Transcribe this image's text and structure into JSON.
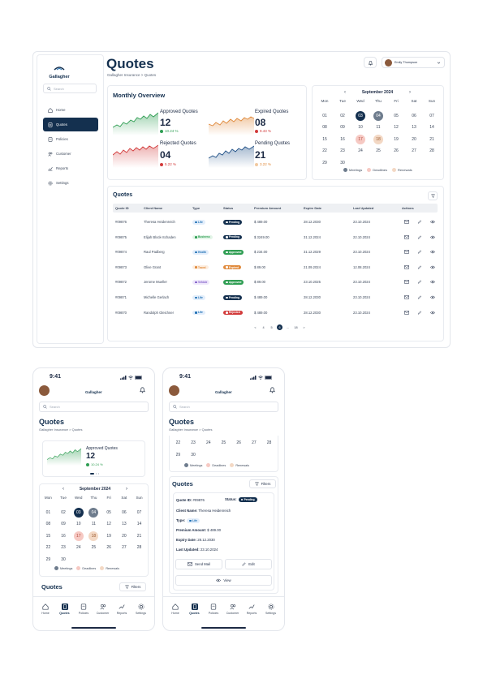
{
  "brand": {
    "name": "Gallagher"
  },
  "desktop": {
    "search_placeholder": "Search",
    "nav": [
      {
        "label": "Home",
        "icon": "home-icon"
      },
      {
        "label": "Quotes",
        "icon": "quotes-icon"
      },
      {
        "label": "Policies",
        "icon": "policies-icon"
      },
      {
        "label": "Customer",
        "icon": "customer-icon"
      },
      {
        "label": "Reports",
        "icon": "reports-icon"
      },
      {
        "label": "Settings",
        "icon": "settings-icon"
      }
    ],
    "page_title": "Quotes",
    "breadcrumb": "Gallagher Insurance > Quotes",
    "user_name": "Emily Thompson",
    "overview": {
      "title": "Monthly Overview",
      "items": [
        {
          "label": "Approved Quotes",
          "value": "12",
          "change": "10.24 %",
          "trend": "up",
          "color": "#2f9e53"
        },
        {
          "label": "Expired Quotes",
          "value": "08",
          "change": "9.43 %",
          "trend": "down",
          "color": "#e08a3c"
        },
        {
          "label": "Rejected Quotes",
          "value": "04",
          "change": "5.22 %",
          "trend": "down",
          "color": "#d23a3a"
        },
        {
          "label": "Pending Quotes",
          "value": "21",
          "change": "3.22 %",
          "trend": "up",
          "color": "#1e4f86"
        }
      ]
    },
    "calendar": {
      "month": "September 2024",
      "weekdays": [
        "Mon",
        "Tue",
        "Wed",
        "Thu",
        "Fri",
        "Sat",
        "Sun"
      ],
      "weeks": [
        [
          "01",
          "02",
          "03",
          "04",
          "05",
          "06",
          "07"
        ],
        [
          "08",
          "09",
          "10",
          "11",
          "12",
          "13",
          "14"
        ],
        [
          "15",
          "16",
          "17",
          "18",
          "19",
          "20",
          "21"
        ],
        [
          "22",
          "23",
          "24",
          "25",
          "26",
          "27",
          "28"
        ],
        [
          "29",
          "30",
          "",
          "",
          "",
          "",
          ""
        ]
      ],
      "legend": [
        "Meetings",
        "Deadlines",
        "Renewals"
      ]
    },
    "quotes": {
      "title": "Quotes",
      "columns": [
        "Quote ID",
        "Client Name",
        "Type",
        "Status",
        "Premium Amount",
        "Expire Date",
        "Last Updated",
        "Actions"
      ],
      "rows": [
        {
          "id": "#09876",
          "client": "Theresa Heidenreich",
          "type": "Life",
          "status": "Pending",
          "premium": "$ 489.00",
          "expire": "28.12.2030",
          "updated": "23.10.2024"
        },
        {
          "id": "#09875",
          "client": "Elijah Block-Schaden",
          "type": "Business",
          "status": "Pending",
          "premium": "$ 3249.00",
          "expire": "31.12.2024",
          "updated": "22.10.2024"
        },
        {
          "id": "#09874",
          "client": "Raul Padberg",
          "type": "Health",
          "status": "Approved",
          "premium": "$ 234.00",
          "expire": "31.12.2029",
          "updated": "23.10.2024"
        },
        {
          "id": "#09873",
          "client": "Olive Grant",
          "type": "Travel",
          "status": "Expired",
          "premium": "$ 89.00",
          "expire": "21.09.2024",
          "updated": "12.08.2024"
        },
        {
          "id": "#09872",
          "client": "Jerome Mueller",
          "type": "Vehicle",
          "status": "Approved",
          "premium": "$ 89.00",
          "expire": "23.10.2025",
          "updated": "23.10.2024"
        },
        {
          "id": "#09871",
          "client": "Michelle Gerlach",
          "type": "Life",
          "status": "Pending",
          "premium": "$ 489.00",
          "expire": "28.12.2030",
          "updated": "23.10.2024"
        },
        {
          "id": "#09870",
          "client": "Randolph Gleichner",
          "type": "Life",
          "status": "Rejected",
          "premium": "$ 489.00",
          "expire": "28.12.2030",
          "updated": "23.10.2024"
        }
      ],
      "pagination": [
        "<",
        "4",
        "5",
        "6",
        "...",
        "18",
        ">"
      ]
    }
  },
  "mobile": {
    "time": "9:41",
    "search_placeholder": "Search",
    "page_title": "Quotes",
    "breadcrumb": "Gallagher Insurance > Quotes",
    "approved": {
      "label": "Approved Quotes",
      "value": "12",
      "change": "10.24 %"
    },
    "quotes_title": "Quotes",
    "filters_label": "Filters",
    "tabs": [
      "Home",
      "Quotes",
      "Policies",
      "Customer",
      "Reports",
      "Settings"
    ],
    "detail": {
      "quote_id_label": "Quote ID:",
      "quote_id": "#09876",
      "status_label": "Status:",
      "status": "Pending",
      "client_label": "Client Name:",
      "client": "Theresa Heidenreich",
      "type_label": "Type:",
      "type": "Life",
      "premium_label": "Premium Amount:",
      "premium": "$ 489.00",
      "expiry_label": "Expiry Date:",
      "expiry": "28.12.2030",
      "updated_label": "Last Updated:",
      "updated": "23.10.2024",
      "send_mail": "Send Mail",
      "edit": "Edit",
      "view": "View"
    }
  },
  "colors": {
    "navy": "#14304f",
    "pending": "#14304f",
    "approved": "#2f9e53",
    "expired": "#e08a3c",
    "rejected": "#d23a3a",
    "deadline": "#f6c9c3",
    "renewal": "#f3d8c4",
    "meeting": "#6e7c8d"
  }
}
